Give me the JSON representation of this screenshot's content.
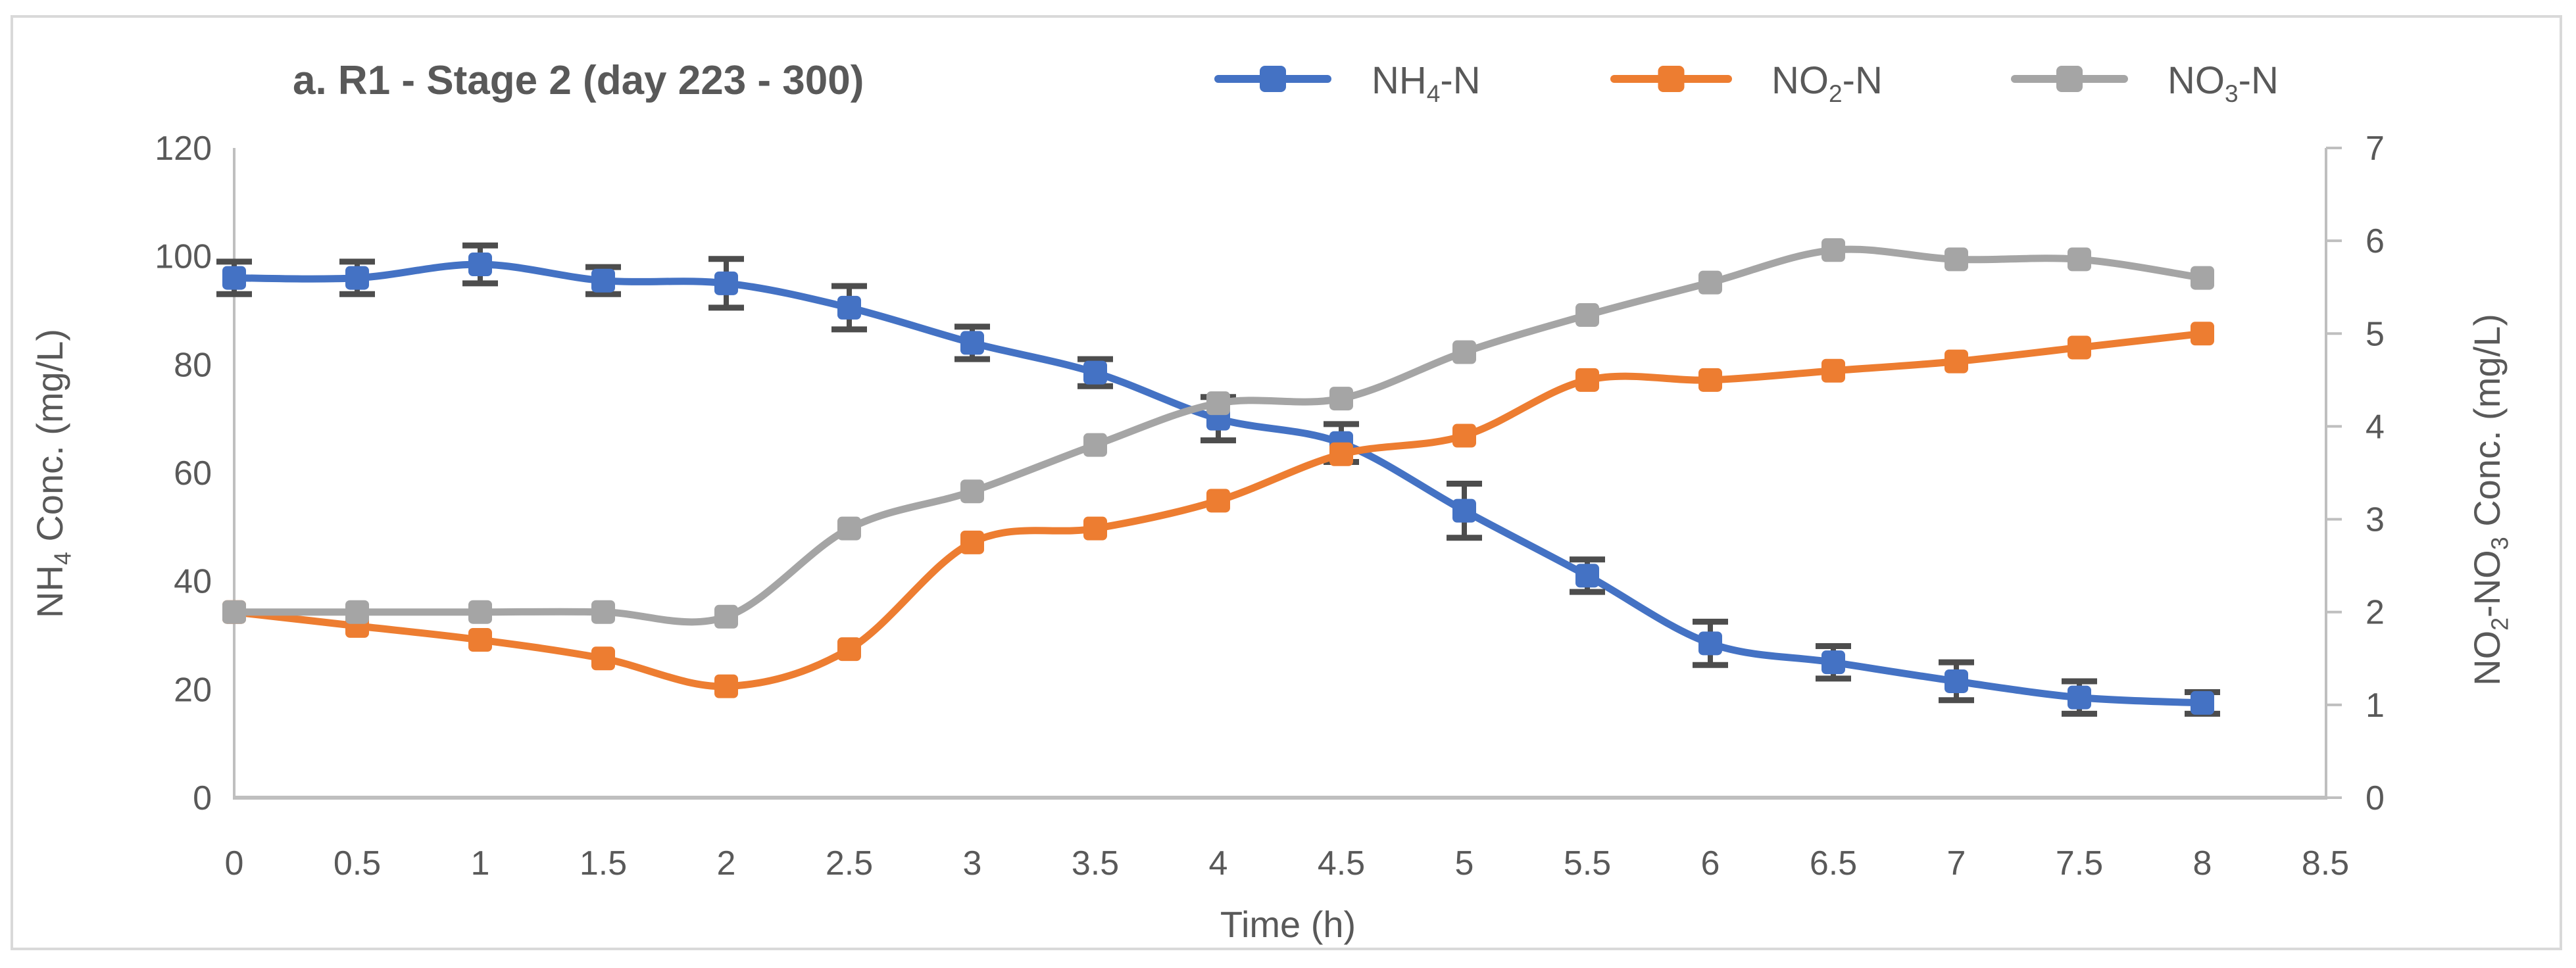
{
  "chart_data": {
    "type": "line",
    "title": "a. R1 - Stage 2 (day 223 - 300)",
    "xlabel": "Time (h)",
    "x": [
      0,
      0.5,
      1,
      1.5,
      2,
      2.5,
      3,
      3.5,
      4,
      4.5,
      5,
      5.5,
      6,
      6.5,
      7,
      7.5,
      8
    ],
    "series": [
      {
        "id": "nh4-n",
        "name": "NH4-N",
        "label_parts": [
          {
            "t": "NH"
          },
          {
            "t": "4",
            "sub": true
          },
          {
            "t": "-N"
          }
        ],
        "axis": "left",
        "color": "#4472C4",
        "values": [
          96,
          96,
          98.5,
          95.5,
          95,
          90.5,
          84,
          78.5,
          70,
          65.5,
          53,
          41,
          28.5,
          25,
          21.5,
          18.5,
          17.5
        ],
        "errors": [
          3,
          3,
          3.5,
          2.5,
          4.5,
          4,
          3,
          2.5,
          4,
          3.5,
          5,
          3,
          4,
          3,
          3.5,
          3,
          2
        ],
        "legend_text_color": "#3714E6"
      },
      {
        "id": "no2-n",
        "name": "NO2-N",
        "label_parts": [
          {
            "t": "NO"
          },
          {
            "t": "2",
            "sub": true
          },
          {
            "t": "-N"
          }
        ],
        "axis": "right",
        "color": "#ED7D31",
        "values": [
          2,
          1.85,
          1.7,
          1.5,
          1.2,
          1.6,
          2.75,
          2.9,
          3.2,
          3.7,
          3.9,
          4.5,
          4.5,
          4.6,
          4.7,
          4.85,
          5
        ],
        "errors": null,
        "legend_text_color": "#FFC000"
      },
      {
        "id": "no3-n",
        "name": "NO3-N",
        "label_parts": [
          {
            "t": "NO"
          },
          {
            "t": "3",
            "sub": true
          },
          {
            "t": "-N"
          }
        ],
        "axis": "right",
        "color": "#A5A5A5",
        "values": [
          2,
          2,
          2,
          2,
          1.95,
          2.9,
          3.3,
          3.8,
          4.25,
          4.3,
          4.8,
          5.2,
          5.55,
          5.9,
          5.8,
          5.8,
          5.6
        ],
        "errors": null,
        "legend_text_color": "#7F7F7F"
      }
    ],
    "axes": {
      "left": {
        "title_parts": [
          {
            "t": "NH"
          },
          {
            "t": "4",
            "sub": true
          },
          {
            "t": " Conc. (mg/L)"
          }
        ],
        "min": 0,
        "max": 120,
        "ticks": [
          0,
          20,
          40,
          60,
          80,
          100,
          120
        ]
      },
      "right": {
        "title_parts": [
          {
            "t": "NO"
          },
          {
            "t": "2",
            "sub": true
          },
          {
            "t": "-NO"
          },
          {
            "t": "3",
            "sub": true
          },
          {
            "t": "  Conc. (mg/L)"
          }
        ],
        "min": 0,
        "max": 7,
        "ticks": [
          0,
          1,
          2,
          3,
          4,
          5,
          6,
          7
        ]
      },
      "x": {
        "min": 0,
        "max": 8.5,
        "tick_labels": [
          "0",
          "0.5",
          "1",
          "1.5",
          "2",
          "2.5",
          "3",
          "3.5",
          "4",
          "4.5",
          "5",
          "5.5",
          "6",
          "6.5",
          "7",
          "7.5",
          "8",
          "8.5"
        ]
      }
    },
    "legend_position": "top",
    "grid": false,
    "colors": {
      "axis_line": "#BFBFBF",
      "error_bar": "#4D4D4D",
      "tick_text": "#595959",
      "outer_border": "#D9D9D9",
      "background": "#FFFFFF"
    }
  }
}
